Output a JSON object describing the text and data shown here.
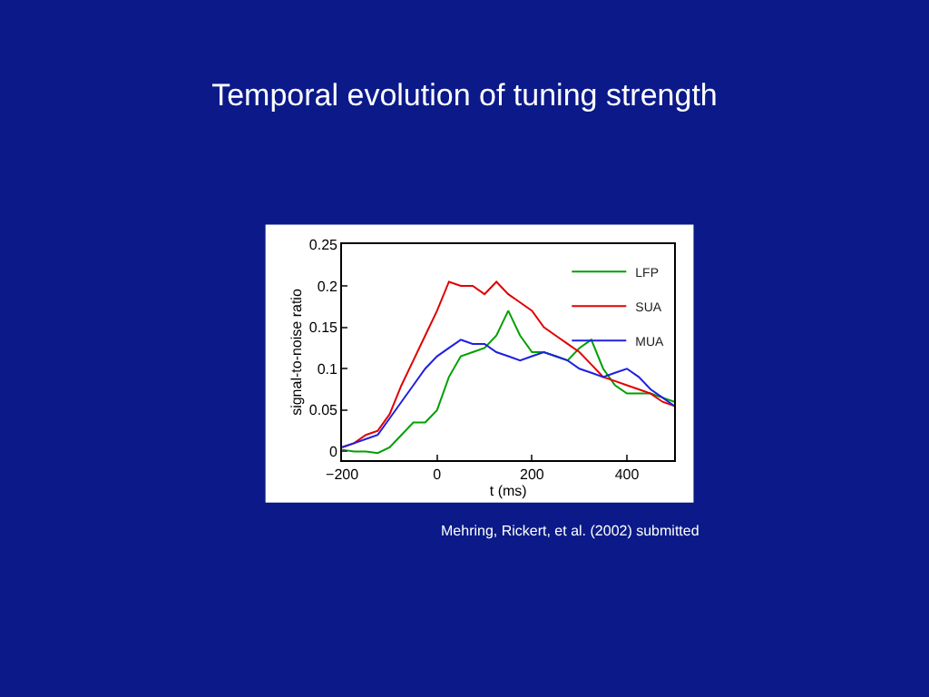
{
  "chart_data": {
    "type": "line",
    "title": "Temporal evolution of tuning strength",
    "xlabel": "t (ms)",
    "ylabel": "signal-to-noise ratio",
    "annotations": [
      "Mehring, Rickert, et al. (2002) submitted"
    ],
    "x": [
      -200,
      -175,
      -150,
      -125,
      -100,
      -75,
      -50,
      -25,
      0,
      25,
      50,
      75,
      100,
      125,
      150,
      175,
      200,
      225,
      250,
      275,
      300,
      325,
      350,
      375,
      400,
      425,
      450,
      475,
      500
    ],
    "series": [
      {
        "name": "LFP",
        "color": "#00a000",
        "values": [
          0.002,
          0,
          0,
          -0.002,
          0.005,
          0.02,
          0.035,
          0.035,
          0.05,
          0.09,
          0.115,
          0.12,
          0.125,
          0.14,
          0.17,
          0.14,
          0.12,
          0.12,
          0.115,
          0.11,
          0.125,
          0.135,
          0.1,
          0.08,
          0.07,
          0.07,
          0.07,
          0.065,
          0.06
        ]
      },
      {
        "name": "SUA",
        "color": "#e00000",
        "values": [
          0.005,
          0.01,
          0.02,
          0.025,
          0.045,
          0.08,
          0.11,
          0.14,
          0.17,
          0.205,
          0.2,
          0.2,
          0.19,
          0.205,
          0.19,
          0.18,
          0.17,
          0.15,
          0.14,
          0.13,
          0.12,
          0.105,
          0.09,
          0.085,
          0.08,
          0.075,
          0.07,
          0.06,
          0.055
        ]
      },
      {
        "name": "MUA",
        "color": "#2020e0",
        "values": [
          0.005,
          0.01,
          0.015,
          0.02,
          0.04,
          0.06,
          0.08,
          0.1,
          0.115,
          0.125,
          0.135,
          0.13,
          0.13,
          0.12,
          0.115,
          0.11,
          0.115,
          0.12,
          0.115,
          0.11,
          0.1,
          0.095,
          0.09,
          0.095,
          0.1,
          0.09,
          0.075,
          0.065,
          0.055
        ]
      }
    ],
    "xlim": [
      -200,
      500
    ],
    "xticks": [
      -200,
      0,
      200,
      400
    ],
    "ylim": [
      -0.01,
      0.25
    ],
    "yticks": [
      0,
      0.05,
      0.1,
      0.15,
      0.2,
      0.25
    ],
    "legend": "top right",
    "marker": "none",
    "line_style": "solid"
  }
}
